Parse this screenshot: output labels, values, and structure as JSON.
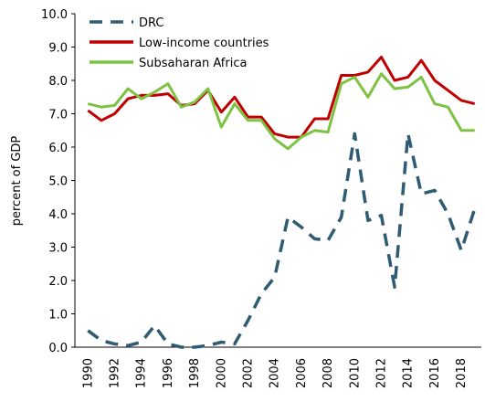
{
  "chart_data": {
    "type": "line",
    "y_label": "percent of GDP",
    "categories": [
      "1990",
      null,
      "1992",
      null,
      "1994",
      null,
      "1996",
      null,
      "1998",
      null,
      "2000",
      null,
      "2002",
      null,
      "2004",
      null,
      "2006",
      null,
      "2008",
      null,
      "2010",
      null,
      "2012",
      null,
      "2014",
      null,
      "2016",
      null,
      "2018",
      null
    ],
    "series": [
      {
        "name": "DRC",
        "color": "#2f5b73",
        "linestyle": "dashed",
        "values": [
          0.5,
          0.2,
          0.1,
          0.05,
          0.15,
          0.65,
          0.1,
          0.0,
          0.0,
          0.05,
          0.15,
          0.1,
          0.8,
          1.6,
          2.1,
          3.9,
          3.6,
          3.25,
          3.2,
          3.9,
          6.4,
          3.8,
          3.95,
          1.8,
          6.4,
          4.6,
          4.7,
          4.0,
          2.9,
          4.15
        ]
      },
      {
        "name": "Low-income countries",
        "color": "#c00000",
        "linestyle": "solid",
        "values": [
          7.1,
          6.8,
          7.0,
          7.45,
          7.55,
          7.55,
          7.6,
          7.25,
          7.3,
          7.7,
          7.05,
          7.5,
          6.9,
          6.9,
          6.4,
          6.3,
          6.3,
          6.85,
          6.85,
          8.15,
          8.15,
          8.25,
          8.7,
          8.0,
          8.1,
          8.6,
          8.0,
          7.7,
          7.4,
          7.3
        ]
      },
      {
        "name": "Subsaharan Africa",
        "color": "#7dc242",
        "linestyle": "solid",
        "values": [
          7.3,
          7.2,
          7.25,
          7.75,
          7.45,
          7.65,
          7.9,
          7.2,
          7.35,
          7.75,
          6.6,
          7.3,
          6.8,
          6.8,
          6.25,
          5.95,
          6.3,
          6.5,
          6.45,
          7.9,
          8.1,
          7.5,
          8.2,
          7.75,
          7.8,
          8.1,
          7.3,
          7.2,
          6.5,
          6.5
        ]
      }
    ],
    "ylim": [
      0,
      10
    ],
    "yticks": [
      {
        "value": 0,
        "label": "0.0"
      },
      {
        "value": 1,
        "label": "1.0"
      },
      {
        "value": 2,
        "label": "2.0"
      },
      {
        "value": 3,
        "label": "3.0"
      },
      {
        "value": 4,
        "label": "4.0"
      },
      {
        "value": 5,
        "label": "5.0"
      },
      {
        "value": 6,
        "label": "6.0"
      },
      {
        "value": 7,
        "label": "7.0"
      },
      {
        "value": 8,
        "label": "8.0"
      },
      {
        "value": 9,
        "label": "9.0"
      },
      {
        "value": 10,
        "label": "10.0"
      }
    ],
    "legend": "upper left",
    "grid": false
  }
}
